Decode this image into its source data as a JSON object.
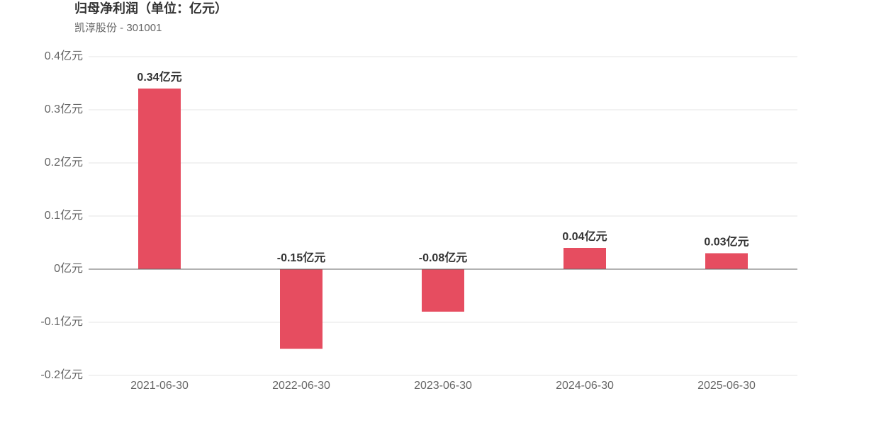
{
  "chart_data": {
    "type": "bar",
    "title": "归母净利润（单位：亿元）",
    "subtitle": "凯淳股份 - 301001",
    "categories": [
      "2021-06-30",
      "2022-06-30",
      "2023-06-30",
      "2024-06-30",
      "2025-06-30"
    ],
    "values": [
      0.34,
      -0.15,
      -0.08,
      0.04,
      0.03
    ],
    "value_labels": [
      "0.34亿元",
      "-0.15亿元",
      "-0.08亿元",
      "0.04亿元",
      "0.03亿元"
    ],
    "color": "#e64d60",
    "ylim": [
      -0.2,
      0.4
    ],
    "yticks": [
      {
        "value": -0.2,
        "label": "-0.2亿元"
      },
      {
        "value": -0.1,
        "label": "-0.1亿元"
      },
      {
        "value": 0,
        "label": "0亿元"
      },
      {
        "value": 0.1,
        "label": "0.1亿元"
      },
      {
        "value": 0.2,
        "label": "0.2亿元"
      },
      {
        "value": 0.3,
        "label": "0.3亿元"
      },
      {
        "value": 0.4,
        "label": "0.4亿元"
      }
    ],
    "grid": true
  }
}
